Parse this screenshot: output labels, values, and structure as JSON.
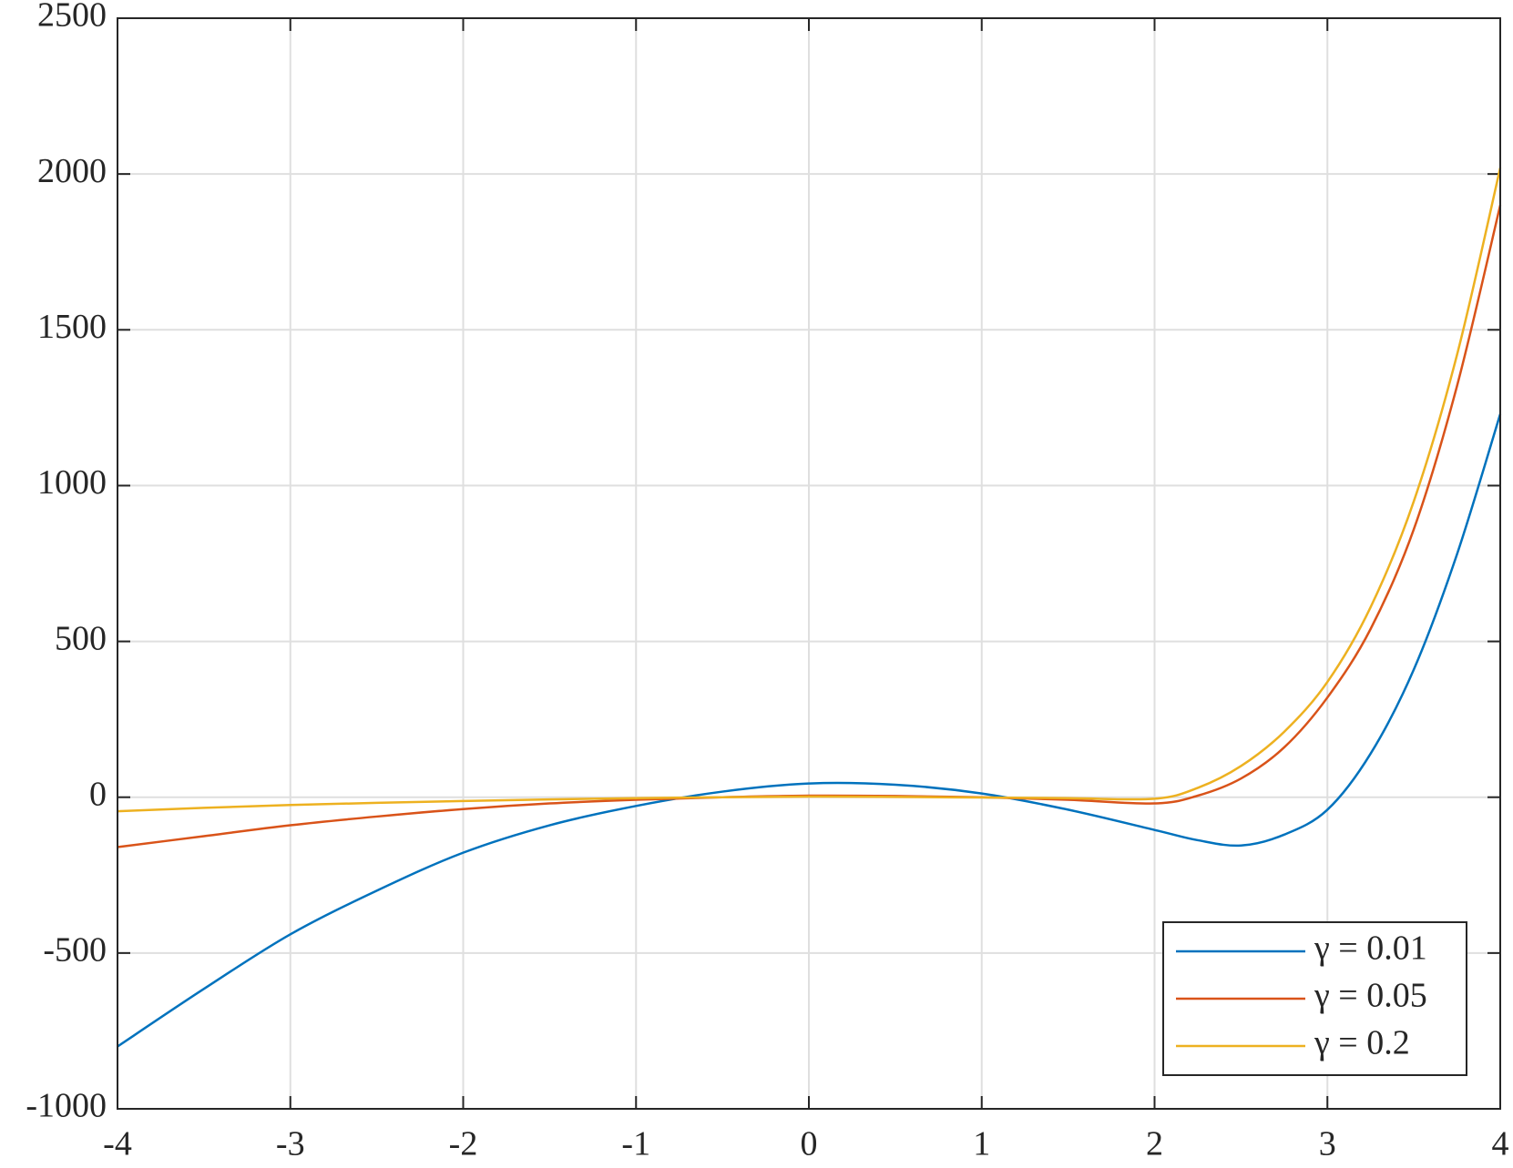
{
  "chart_data": {
    "type": "line",
    "x": [
      -4,
      -3.5,
      -3,
      -2.5,
      -2,
      -1.5,
      -1,
      -0.5,
      0,
      0.5,
      1,
      1.5,
      2,
      2.25,
      2.5,
      2.75,
      3,
      3.25,
      3.5,
      3.75,
      4
    ],
    "series": [
      {
        "name": "γ = 0.01",
        "color": "#0072BD",
        "values": [
          -800,
          -615,
          -440,
          -300,
          -178,
          -90,
          -28,
          18,
          44,
          40,
          12,
          -40,
          -105,
          -138,
          -155,
          -120,
          -40,
          140,
          410,
          780,
          1230
        ]
      },
      {
        "name": "γ = 0.05",
        "color": "#D95319",
        "values": [
          -160,
          -125,
          -90,
          -62,
          -38,
          -20,
          -8,
          0,
          5,
          4,
          0,
          -8,
          -20,
          5,
          60,
          160,
          320,
          540,
          860,
          1320,
          1900
        ]
      },
      {
        "name": "γ = 0.2",
        "color": "#EDB120",
        "values": [
          -45,
          -34,
          -25,
          -18,
          -12,
          -7,
          -3,
          0,
          2,
          1,
          -1,
          -3,
          -5,
          30,
          100,
          210,
          370,
          610,
          950,
          1420,
          2020
        ]
      }
    ],
    "xlim": [
      -4,
      4
    ],
    "xticks": [
      -4,
      -3,
      -2,
      -1,
      0,
      1,
      2,
      3,
      4
    ],
    "ylim": [
      -1000,
      2500
    ],
    "yticks": [
      -1000,
      -500,
      0,
      500,
      1000,
      1500,
      2000,
      2500
    ],
    "grid": true,
    "legend": "lower right"
  }
}
